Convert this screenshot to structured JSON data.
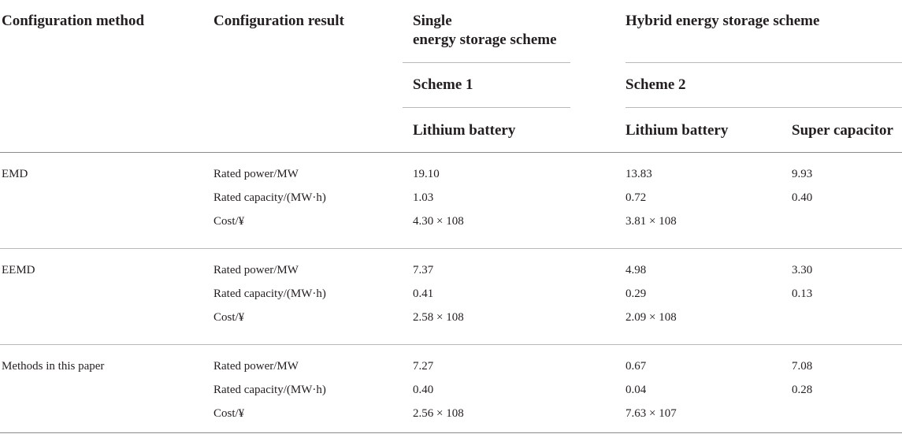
{
  "headers": {
    "configuration_method": "Configuration method",
    "configuration_result": "Configuration result",
    "single_line1": "Single",
    "single_line2": "energy storage scheme",
    "hybrid": "Hybrid energy storage scheme",
    "scheme1": "Scheme 1",
    "scheme2": "Scheme 2",
    "col_lithium_single": "Lithium battery",
    "col_lithium_hybrid": "Lithium battery",
    "col_supercap": "Super capacitor"
  },
  "groups": [
    {
      "method": "EMD",
      "rows": [
        {
          "result": "Rated power/MW",
          "single": "19.10",
          "hybrid_li": "13.83",
          "hybrid_sc": "9.93"
        },
        {
          "result": "Rated capacity/(MW·h)",
          "single": "1.03",
          "hybrid_li": "0.72",
          "hybrid_sc": "0.40"
        },
        {
          "result": "Cost/¥",
          "single": "4.30 × 108",
          "hybrid_li": "3.81 × 108",
          "hybrid_sc": ""
        }
      ]
    },
    {
      "method": "EEMD",
      "rows": [
        {
          "result": "Rated power/MW",
          "single": "7.37",
          "hybrid_li": "4.98",
          "hybrid_sc": "3.30"
        },
        {
          "result": "Rated capacity/(MW·h)",
          "single": "0.41",
          "hybrid_li": "0.29",
          "hybrid_sc": "0.13"
        },
        {
          "result": "Cost/¥",
          "single": "2.58 × 108",
          "hybrid_li": "2.09 × 108",
          "hybrid_sc": ""
        }
      ]
    },
    {
      "method": "Methods in this paper",
      "rows": [
        {
          "result": "Rated power/MW",
          "single": "7.27",
          "hybrid_li": "0.67",
          "hybrid_sc": "7.08"
        },
        {
          "result": "Rated capacity/(MW·h)",
          "single": "0.40",
          "hybrid_li": "0.04",
          "hybrid_sc": "0.28"
        },
        {
          "result": "Cost/¥",
          "single": "2.56 × 108",
          "hybrid_li": "7.63 × 107",
          "hybrid_sc": ""
        }
      ]
    }
  ]
}
